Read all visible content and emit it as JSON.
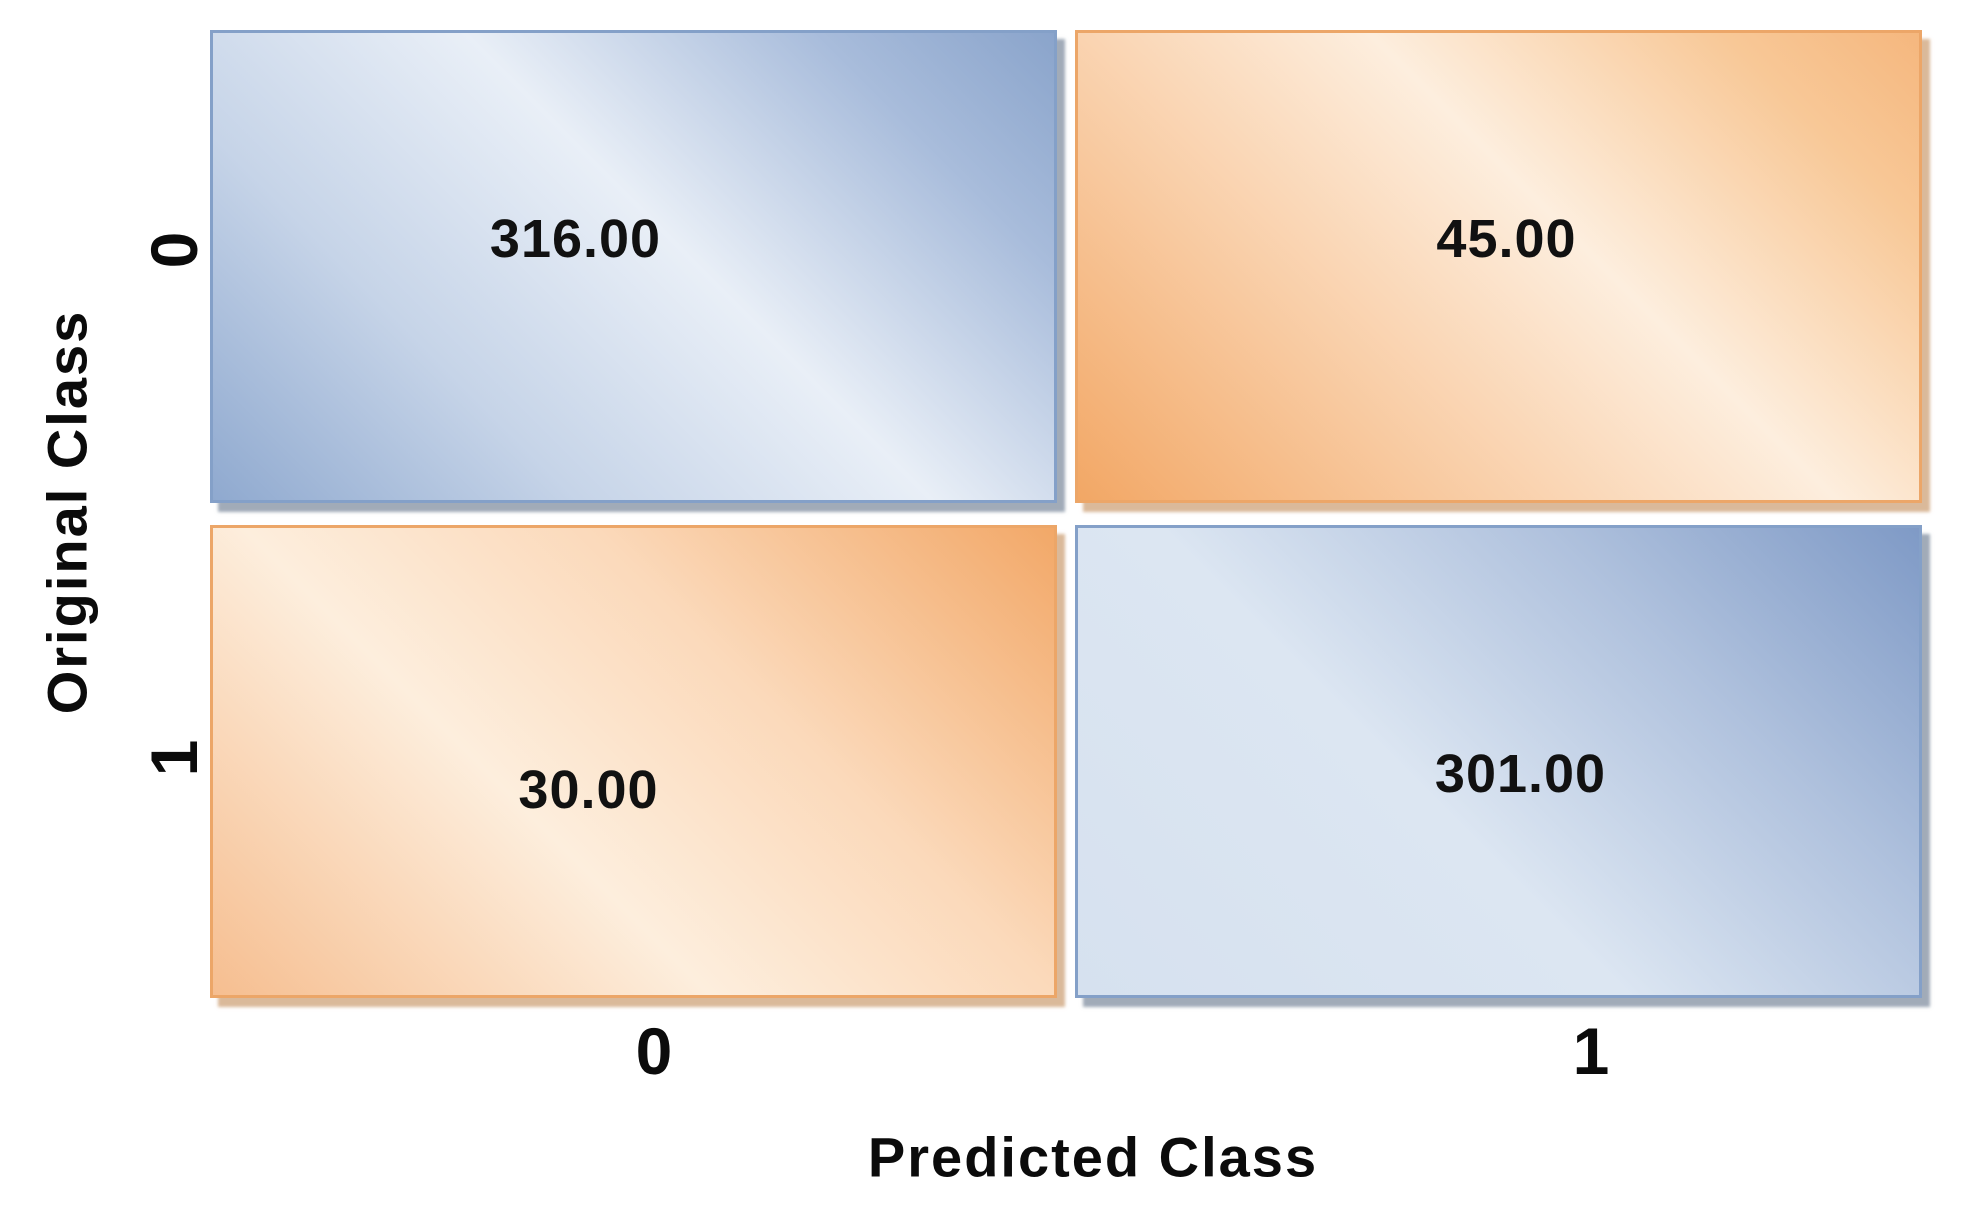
{
  "y_axis": {
    "label": "Original Class",
    "ticks": [
      "0",
      "1"
    ]
  },
  "x_axis": {
    "label": "Predicted Class",
    "ticks": [
      "0",
      "1"
    ]
  },
  "cells": {
    "top_left": {
      "value": "316.00",
      "scheme": "blue"
    },
    "top_right": {
      "value": "45.00",
      "scheme": "orange"
    },
    "bottom_left": {
      "value": "30.00",
      "scheme": "orange"
    },
    "bottom_right": {
      "value": "301.00",
      "scheme": "blue"
    }
  },
  "colors": {
    "blue_dark": "#8FA9CF",
    "blue_light": "#E9EFF7",
    "blue_border": "#84A0C8",
    "orange_dark": "#F2A765",
    "orange_light": "#FDEEDE",
    "orange_border": "#ECA668",
    "value_text": "#111111"
  },
  "chart_data": {
    "type": "heatmap",
    "title": "",
    "xlabel": "Predicted Class",
    "ylabel": "Original Class",
    "x_categories": [
      "0",
      "1"
    ],
    "y_categories": [
      "0",
      "1"
    ],
    "matrix": [
      [
        316.0,
        45.0
      ],
      [
        30.0,
        301.0
      ]
    ],
    "cell_labels": [
      [
        "316.00",
        "45.00"
      ],
      [
        "30.00",
        "301.00"
      ]
    ],
    "cell_colors": [
      [
        "blue",
        "orange"
      ],
      [
        "orange",
        "blue"
      ]
    ],
    "legend": "none",
    "grid": "off"
  }
}
